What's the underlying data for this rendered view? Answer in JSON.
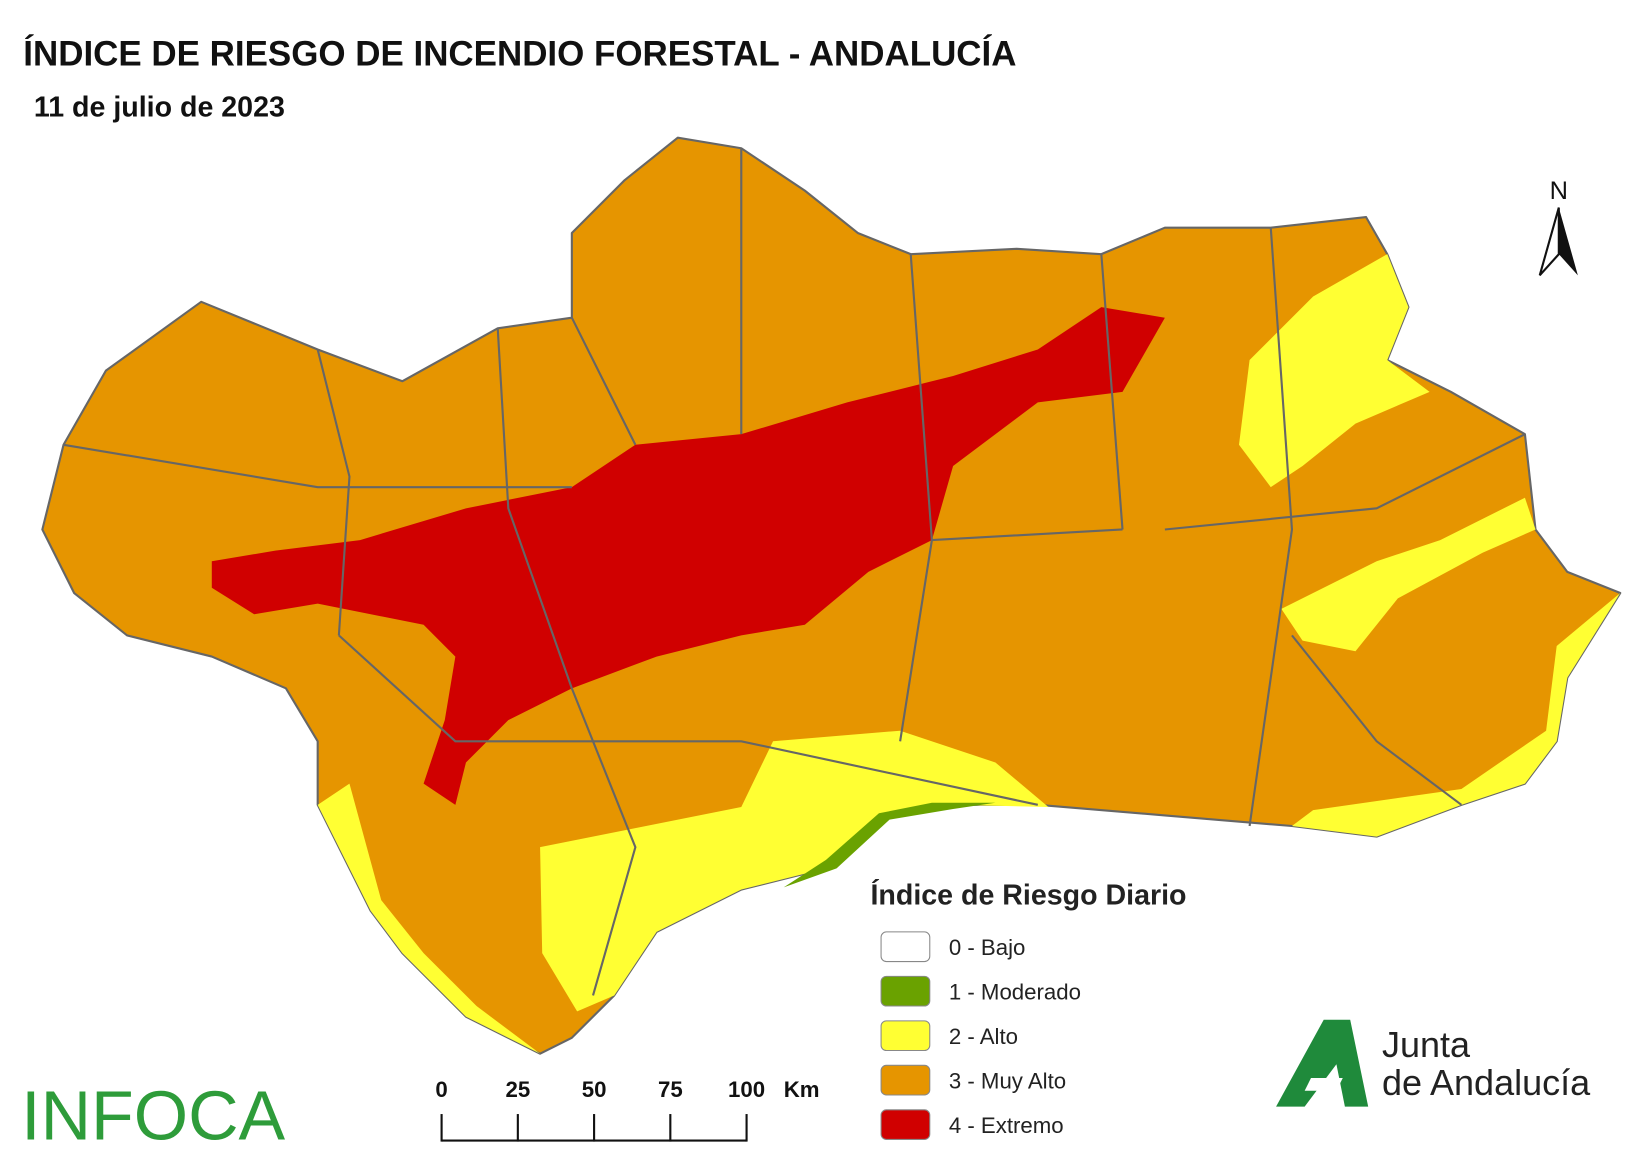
{
  "title": "ÍNDICE DE RIESGO DE INCENDIO FORESTAL - ANDALUCÍA",
  "subtitle": "11 de julio de 2023",
  "north": "N",
  "legend": {
    "title": "Índice de Riesgo Diario",
    "items": [
      {
        "label": "0 - Bajo",
        "color": "#ffffff"
      },
      {
        "label": "1 - Moderado",
        "color": "#6aa200"
      },
      {
        "label": "2 - Alto",
        "color": "#ffff33"
      },
      {
        "label": "3 - Muy Alto",
        "color": "#e69500"
      },
      {
        "label": "4 - Extremo",
        "color": "#d00000"
      }
    ]
  },
  "scale": {
    "ticks": [
      0,
      25,
      50,
      75,
      100
    ],
    "unit": "Km"
  },
  "logos": {
    "infoca": "INFOCA",
    "junta": "Junta",
    "andalucia": "de Andalucía"
  }
}
